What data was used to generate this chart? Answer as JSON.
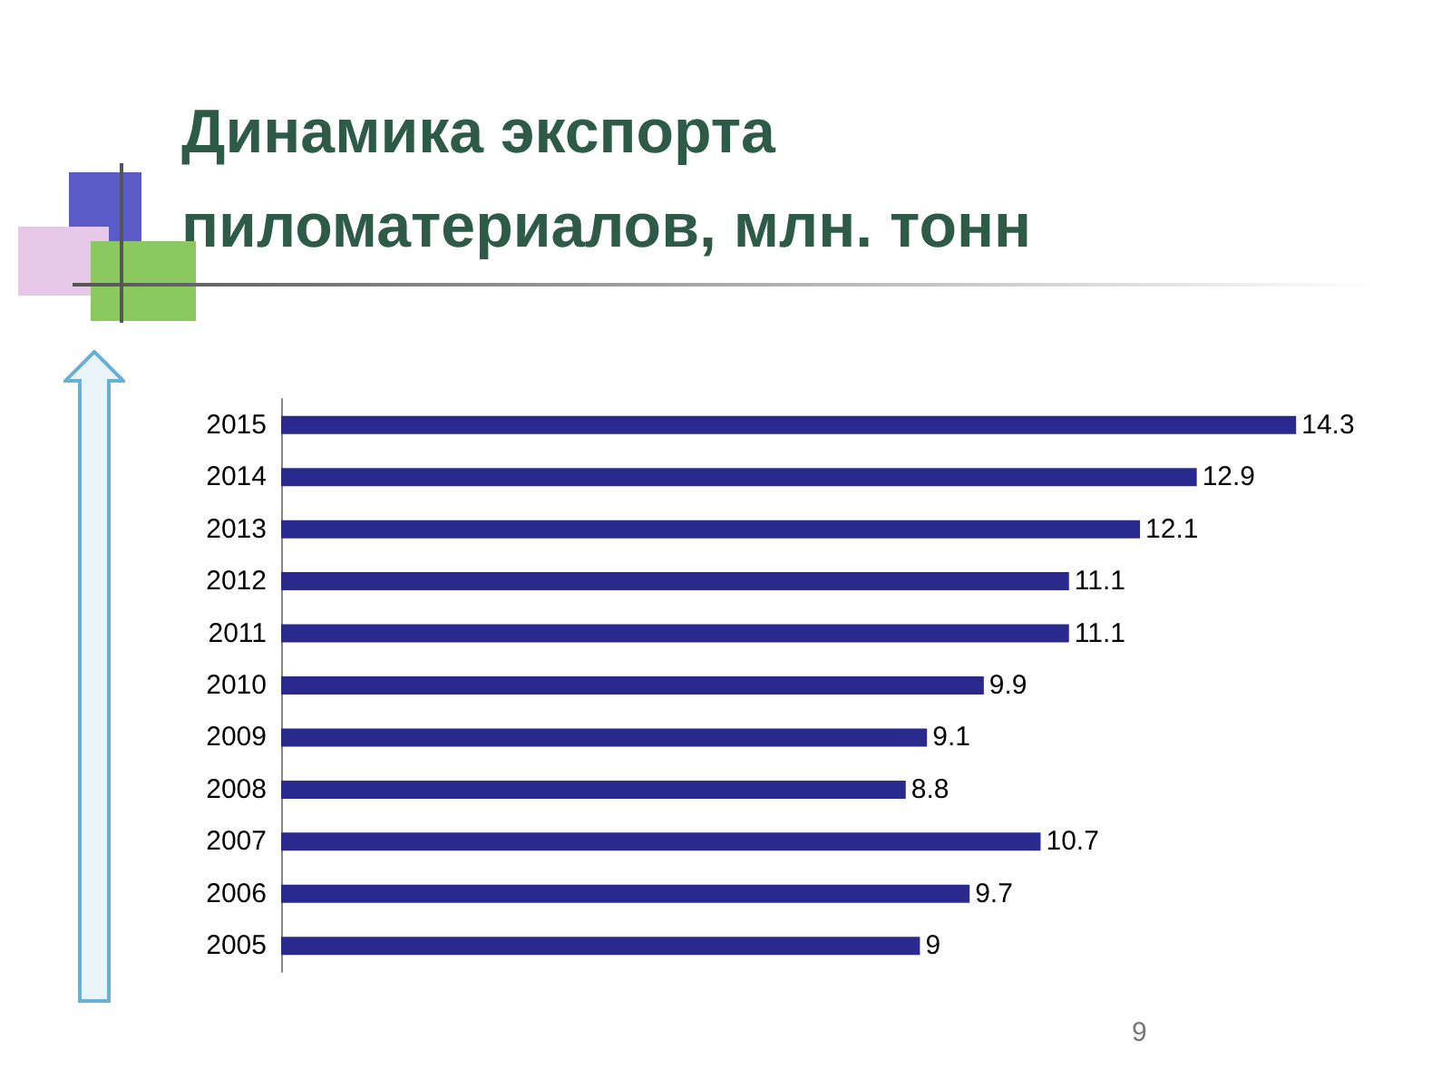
{
  "chart_data": {
    "type": "bar",
    "orientation": "horizontal",
    "title": "Динамика экспорта\nпиломатериалов, млн. тонн",
    "categories": [
      "2015",
      "2014",
      "2013",
      "2012",
      "2011",
      "2010",
      "2009",
      "2008",
      "2007",
      "2006",
      "2005"
    ],
    "values": [
      14.3,
      12.9,
      12.1,
      11.1,
      11.1,
      9.9,
      9.1,
      8.8,
      10.7,
      9.7,
      9
    ],
    "color": "#2a2a8e",
    "data_labels": true,
    "annotations": [
      "9"
    ]
  }
}
